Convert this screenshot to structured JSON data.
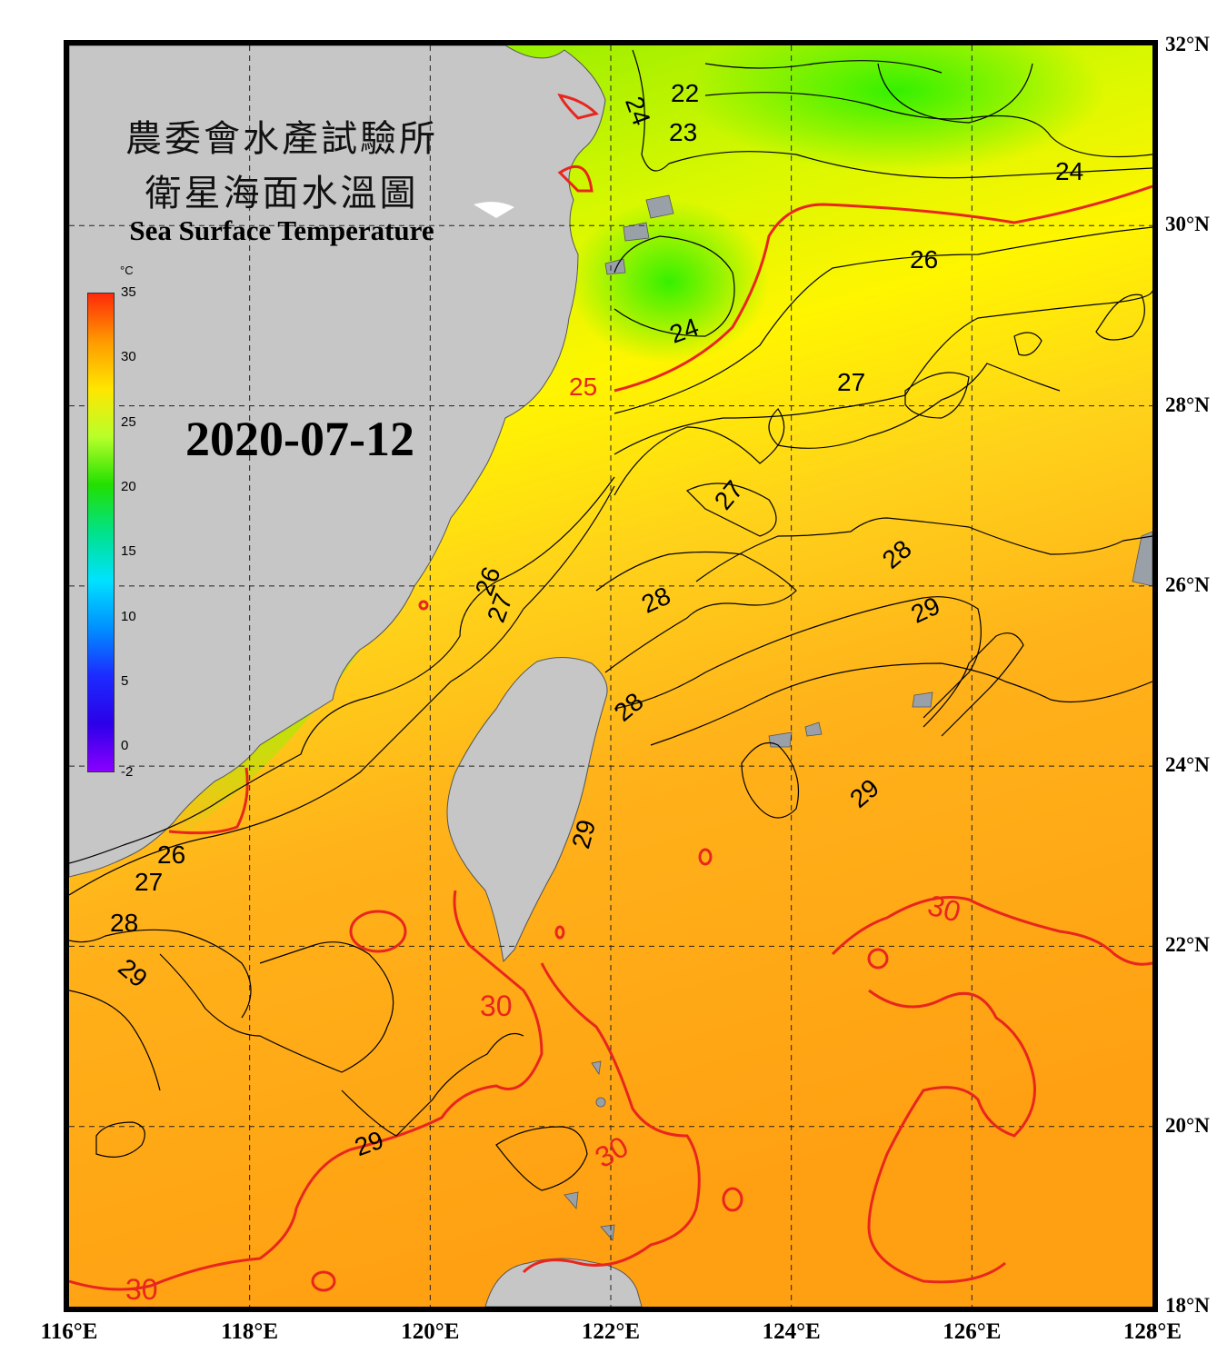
{
  "header": {
    "title_line1": "農委會水產試驗所",
    "title_line2": "衛星海面水溫圖",
    "title_en": "Sea Surface Temperature",
    "date": "2020-07-12"
  },
  "colorbar": {
    "unit": "°C",
    "min": -2,
    "max": 35,
    "ticks": [
      "35",
      "30",
      "25",
      "20",
      "15",
      "10",
      "5",
      "0",
      "-2"
    ],
    "tick_values": [
      35,
      30,
      25,
      20,
      15,
      10,
      5,
      0,
      -2
    ],
    "gradient_colors": [
      "#ff2a0a",
      "#ff9a00",
      "#ffe600",
      "#b8ff2a",
      "#22e000",
      "#00e28a",
      "#00e2ff",
      "#0090ff",
      "#1c2bff",
      "#2b00e8",
      "#8a00ff"
    ]
  },
  "axes": {
    "lat_labels": [
      "32°N",
      "30°N",
      "28°N",
      "26°N",
      "24°N",
      "22°N",
      "20°N",
      "18°N"
    ],
    "lat_values": [
      32,
      30,
      28,
      26,
      24,
      22,
      20,
      18
    ],
    "lon_labels": [
      "116°E",
      "118°E",
      "120°E",
      "122°E",
      "124°E",
      "126°E",
      "128°E"
    ],
    "lon_values": [
      116,
      118,
      120,
      122,
      124,
      126,
      128
    ],
    "lat_range": [
      18,
      32
    ],
    "lon_range": [
      116,
      128
    ],
    "grid": true
  },
  "contour_labels": [
    "22",
    "23",
    "24",
    "24",
    "24",
    "25",
    "26",
    "26",
    "26",
    "27",
    "27",
    "27",
    "27",
    "28",
    "28",
    "28",
    "28",
    "29",
    "29",
    "29",
    "29",
    "29",
    "30",
    "30",
    "30",
    "30"
  ],
  "colors": {
    "land": "#c6c6c6",
    "sea_warm": "#ffa61a",
    "sea_mid": "#ffe81a",
    "sea_cool": "#9cf000",
    "sea_cold": "#33f000",
    "contour_highlight": "#e8261e",
    "contour": "#000000"
  }
}
